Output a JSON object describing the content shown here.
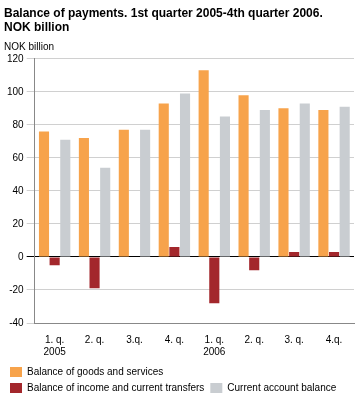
{
  "chart_data": {
    "type": "bar",
    "title": "Balance of payments. 1st quarter 2005-4th quarter 2006. NOK billion",
    "y_label": "NOK billion",
    "categories": [
      [
        "1. q.",
        "2005"
      ],
      "2. q.",
      "3.q.",
      "4. q.",
      [
        "1. q.",
        "2006"
      ],
      "2. q.",
      "3. q.",
      "4.q."
    ],
    "series": [
      {
        "name": "Balance of goods and services",
        "color": "#f7a34b",
        "values": [
          76,
          72,
          77,
          93,
          113,
          98,
          90,
          89
        ]
      },
      {
        "name": "Balance of income and current transfers",
        "color": "#a3272c",
        "values": [
          -5,
          -19,
          0,
          6,
          -28,
          -8,
          3,
          3
        ]
      },
      {
        "name": "Current account balance",
        "color": "#c9cdd1",
        "values": [
          71,
          54,
          77,
          99,
          85,
          89,
          93,
          91
        ]
      }
    ],
    "ylim": [
      -40,
      120
    ],
    "yticks": [
      -40,
      -20,
      0,
      20,
      40,
      60,
      80,
      100,
      120
    ],
    "grid": true,
    "legend": "bottom"
  }
}
